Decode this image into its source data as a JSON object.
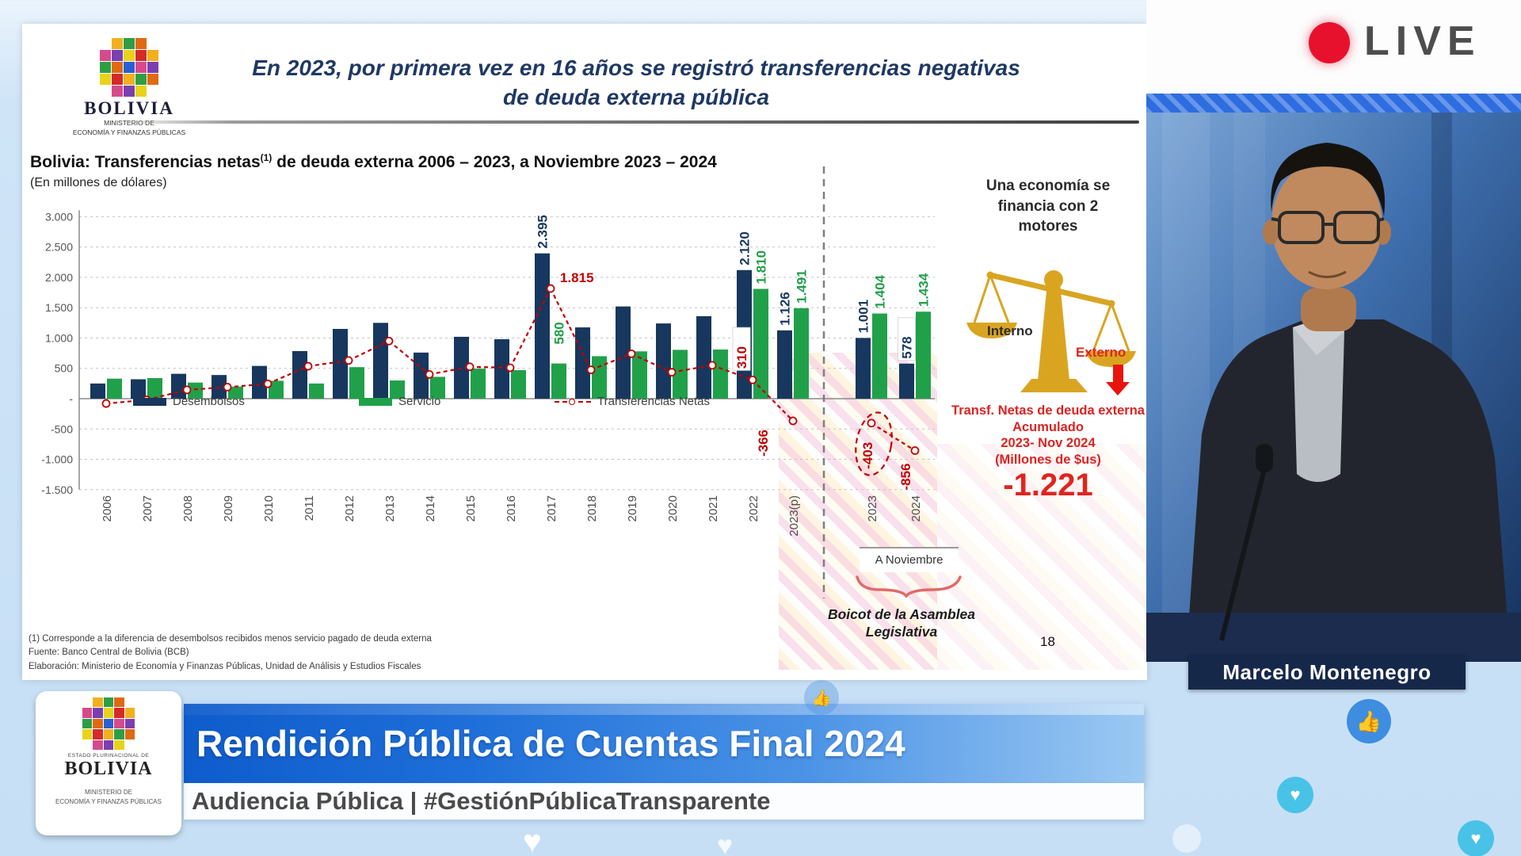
{
  "live_badge": {
    "label": "LIVE"
  },
  "speaker": {
    "name": "Marcelo Montenegro"
  },
  "banner": {
    "title": "Rendición Pública de Cuentas Final 2024",
    "subtitle": "Audiencia Pública | #GestiónPúblicaTransparente"
  },
  "logo": {
    "state": "ESTADO PLURINACIONAL DE",
    "country": "BOLIVIA",
    "ministry_line1": "MINISTERIO DE",
    "ministry_line2": "ECONOMÍA Y FINANZAS PÚBLICAS",
    "ministry_full": "MINISTERIO DE ECONOMÍA Y FINANZAS PÚBLICAS"
  },
  "slide": {
    "headline": {
      "line1": "En 2023, por primera vez en 16 años se registró transferencias negativas",
      "line2": "de deuda externa pública"
    },
    "chart_header": {
      "title_pre": "Bolivia: Transferencias netas",
      "title_sup": "(1)",
      "title_post": " de deuda externa 2006 – 2023, a Noviembre 2023 – 2024",
      "subtitle": "(En millones de dólares)"
    },
    "annotations": {
      "a_noviembre": "A Noviembre",
      "boicot_line1": "Boicot de la Asamblea",
      "boicot_line2": "Legislativa",
      "page_number": "18"
    },
    "side_panel": {
      "head_line1": "Una economía se",
      "head_line2": "financia con 2",
      "head_line3": "motores",
      "interno": "Interno",
      "externo": "Externo",
      "accum_line1": "Transf. Netas de deuda externa",
      "accum_line2": "Acumulado",
      "accum_line3": "2023- Nov 2024",
      "accum_line4": "(Millones de $us)",
      "accum_value": "-1.221"
    },
    "footnotes": [
      "(1) Corresponde a la diferencia de desembolsos recibidos menos servicio pagado de deuda externa",
      "Fuente: Banco Central de Bolivia (BCB)",
      "Elaboración: Ministerio de Economía y Finanzas Públicas, Unidad de Análisis y Estudios Fiscales"
    ]
  },
  "chart_data": {
    "type": "bar+line",
    "title": "Bolivia: Transferencias netas de deuda externa 2006 – 2023, a Noviembre 2023 – 2024",
    "units": "Millones de dólares",
    "categories": [
      "2006",
      "2007",
      "2008",
      "2009",
      "2010",
      "2011",
      "2012",
      "2013",
      "2014",
      "2015",
      "2016",
      "2017",
      "2018",
      "2019",
      "2020",
      "2021",
      "2022",
      "2023(p)",
      "2023",
      "2024"
    ],
    "divider_after_index": 17,
    "a_noviembre_group": [
      "2023",
      "2024"
    ],
    "ylim": [
      -1500,
      3000
    ],
    "ytick_labels": [
      "3.000",
      "2.500",
      "2.000",
      "1.500",
      "1.000",
      "500",
      "-",
      "-500",
      "-1.000",
      "-1.500"
    ],
    "ytick_values": [
      3000,
      2500,
      2000,
      1500,
      1000,
      500,
      0,
      -500,
      -1000,
      -1500
    ],
    "grid": "dashed horizontal",
    "legend_position": "bottom",
    "series": [
      {
        "name": "Desembolsos",
        "type": "bar",
        "color": "#17375e",
        "values": [
          250,
          320,
          410,
          390,
          540,
          785,
          1150,
          1250,
          760,
          1020,
          980,
          2395,
          1175,
          1520,
          1240,
          1360,
          2120,
          1126,
          1001,
          578
        ],
        "labels": [
          null,
          null,
          null,
          null,
          null,
          null,
          null,
          null,
          null,
          null,
          null,
          "2.395",
          null,
          null,
          null,
          null,
          "2.120",
          "1.126",
          "1.001",
          "578"
        ]
      },
      {
        "name": "Servicio",
        "type": "bar",
        "color": "#21a04a",
        "values": [
          330,
          340,
          265,
          200,
          295,
          250,
          520,
          300,
          360,
          495,
          470,
          580,
          700,
          780,
          805,
          810,
          1810,
          1491,
          1404,
          1434
        ],
        "labels": [
          null,
          null,
          null,
          null,
          null,
          null,
          null,
          null,
          null,
          null,
          null,
          "580",
          null,
          null,
          null,
          null,
          "1.810",
          "1.491",
          "1.404",
          "1.434"
        ]
      },
      {
        "name": "Transferencias Netas",
        "type": "line",
        "color": "#c00000",
        "style": "dashed, open circle markers",
        "values": [
          -80,
          -20,
          145,
          190,
          245,
          535,
          630,
          950,
          400,
          525,
          510,
          1815,
          475,
          740,
          435,
          550,
          310,
          -366,
          -403,
          -856
        ],
        "labels": [
          null,
          null,
          null,
          null,
          null,
          null,
          null,
          null,
          null,
          null,
          null,
          "1.815",
          null,
          null,
          null,
          null,
          "310",
          "-366",
          "-403",
          "-856"
        ]
      }
    ]
  }
}
